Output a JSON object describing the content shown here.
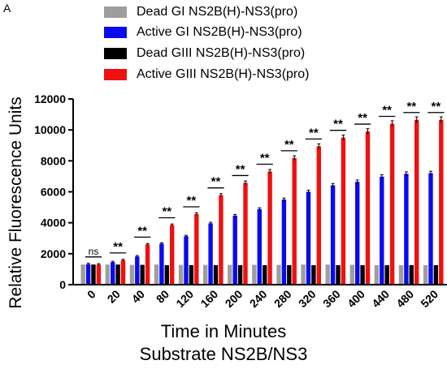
{
  "panel_label": "A",
  "colors": {
    "dead_gi": "#9e9e9e",
    "active_gi": "#0a0aef",
    "dead_giii": "#000000",
    "active_giii": "#ef1010",
    "error_bar": "#000000"
  },
  "chart_data": {
    "type": "bar",
    "categories": [
      "0",
      "20",
      "40",
      "80",
      "120",
      "160",
      "200",
      "240",
      "280",
      "320",
      "360",
      "400",
      "440",
      "480",
      "520"
    ],
    "series": [
      {
        "name": "Dead GI NS2B(H)-NS3(pro)",
        "color_key": "dead_gi",
        "values": [
          1300,
          1300,
          1280,
          1300,
          1280,
          1280,
          1280,
          1280,
          1280,
          1300,
          1300,
          1280,
          1260,
          1260,
          1260
        ]
      },
      {
        "name": "Active GI NS2B(H)-NS3(pro)",
        "color_key": "active_gi",
        "values": [
          1320,
          1450,
          1820,
          2650,
          3130,
          3960,
          4460,
          4880,
          5500,
          6000,
          6420,
          6640,
          6980,
          7160,
          7200
        ]
      },
      {
        "name": "Dead GIII NS2B(H)-NS3(pro)",
        "color_key": "dead_giii",
        "values": [
          1300,
          1300,
          1280,
          1260,
          1260,
          1260,
          1260,
          1260,
          1260,
          1260,
          1260,
          1260,
          1260,
          1260,
          1260
        ]
      },
      {
        "name": "Active GIII NS2B(H)-NS3(pro)",
        "color_key": "active_giii",
        "values": [
          1300,
          1580,
          2600,
          3850,
          4560,
          5780,
          6580,
          7310,
          8180,
          8940,
          9500,
          9900,
          10400,
          10650,
          10650
        ]
      }
    ],
    "significance": [
      "ns",
      "**",
      "**",
      "**",
      "**",
      "**",
      "**",
      "**",
      "**",
      "**",
      "**",
      "**",
      "**",
      "**",
      "**"
    ],
    "ylabel": "Relative Fluorescence Units",
    "xlabel_line1": "Time in Minutes",
    "xlabel_line2": "Substrate NS2B/NS3",
    "ylim": [
      0,
      12000
    ],
    "yticks": [
      "0",
      "2000",
      "4000",
      "6000",
      "8000",
      "10000",
      "12000"
    ],
    "grid": false,
    "legend_position": "top"
  }
}
